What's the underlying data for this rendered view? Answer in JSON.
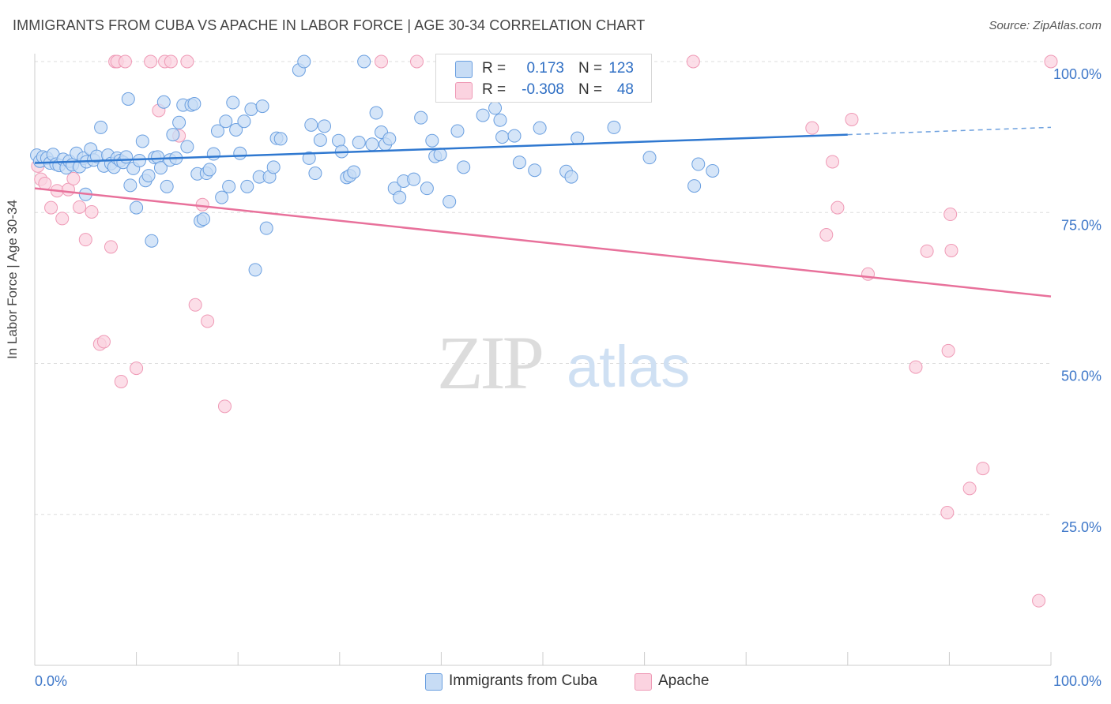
{
  "header": {
    "title": "IMMIGRANTS FROM CUBA VS APACHE IN LABOR FORCE | AGE 30-34 CORRELATION CHART",
    "source": "Source: ZipAtlas.com"
  },
  "watermark": {
    "zip": "ZIP",
    "atlas": "atlas"
  },
  "legend": {
    "rows": [
      {
        "r_label": "R =",
        "r_value": "0.173",
        "n_label": "N =",
        "n_value": "123",
        "color": "#8db8ec"
      },
      {
        "r_label": "R =",
        "r_value": "-0.308",
        "n_label": "N =",
        "n_value": "48",
        "color": "#f4a9c0"
      }
    ]
  },
  "bottom_legend": [
    {
      "label": "Immigrants from Cuba",
      "color": "#8db8ec"
    },
    {
      "label": "Apache",
      "color": "#f4a9c0"
    }
  ],
  "colors": {
    "blue_fill": "#c7dcf5",
    "blue_stroke": "#6a9fe0",
    "blue_line": "#2f78d0",
    "pink_fill": "#fbd3e0",
    "pink_stroke": "#ef9ab6",
    "pink_line": "#e8719b",
    "axis_label": "#3f78c9"
  },
  "chart_data": {
    "type": "scatter",
    "title": "IMMIGRANTS FROM CUBA VS APACHE IN LABOR FORCE | AGE 30-34 CORRELATION CHART",
    "xlabel": "",
    "ylabel": "In Labor Force | Age 30-34",
    "xlim": [
      0,
      100
    ],
    "ylim": [
      0,
      104
    ],
    "x_tick_labels": [
      "0.0%",
      "100.0%"
    ],
    "y_ticks": [
      25,
      50,
      75,
      100
    ],
    "y_tick_labels": [
      "25.0%",
      "50.0%",
      "75.0%",
      "100.0%"
    ],
    "grid": "horizontal dashed",
    "series": [
      {
        "name": "Immigrants from Cuba",
        "points": [
          [
            0.2,
            84.5
          ],
          [
            0.5,
            83.5
          ],
          [
            0.8,
            84.2
          ],
          [
            1.2,
            84.0
          ],
          [
            1.5,
            83.2
          ],
          [
            1.8,
            84.6
          ],
          [
            2.1,
            83.0
          ],
          [
            2.4,
            82.8
          ],
          [
            2.8,
            83.8
          ],
          [
            3.1,
            82.4
          ],
          [
            3.4,
            83.5
          ],
          [
            3.7,
            82.9
          ],
          [
            4.1,
            84.8
          ],
          [
            4.4,
            82.6
          ],
          [
            4.8,
            84.0
          ],
          [
            5.1,
            83.4
          ],
          [
            5.5,
            85.5
          ],
          [
            5.8,
            83.7
          ],
          [
            6.1,
            84.3
          ],
          [
            6.5,
            89.1
          ],
          [
            6.8,
            82.7
          ],
          [
            7.2,
            84.5
          ],
          [
            7.5,
            83.1
          ],
          [
            7.8,
            82.5
          ],
          [
            8.1,
            84.0
          ],
          [
            8.4,
            83.6
          ],
          [
            8.7,
            83.3
          ],
          [
            9.0,
            84.2
          ],
          [
            9.2,
            93.8
          ],
          [
            9.4,
            79.5
          ],
          [
            9.7,
            82.3
          ],
          [
            10.0,
            75.8
          ],
          [
            10.3,
            83.6
          ],
          [
            10.6,
            86.8
          ],
          [
            10.9,
            80.3
          ],
          [
            11.2,
            81.1
          ],
          [
            11.5,
            70.3
          ],
          [
            11.8,
            84.1
          ],
          [
            12.1,
            84.2
          ],
          [
            12.4,
            82.4
          ],
          [
            12.7,
            93.3
          ],
          [
            13.0,
            79.3
          ],
          [
            13.3,
            83.7
          ],
          [
            13.6,
            87.9
          ],
          [
            13.9,
            84.0
          ],
          [
            14.2,
            89.9
          ],
          [
            14.6,
            92.8
          ],
          [
            15.0,
            85.9
          ],
          [
            15.4,
            92.8
          ],
          [
            15.7,
            93.0
          ],
          [
            16.0,
            81.4
          ],
          [
            16.3,
            73.6
          ],
          [
            16.6,
            73.9
          ],
          [
            16.9,
            81.5
          ],
          [
            17.2,
            82.1
          ],
          [
            17.6,
            84.7
          ],
          [
            18.0,
            88.5
          ],
          [
            18.4,
            77.5
          ],
          [
            18.8,
            90.1
          ],
          [
            19.1,
            79.3
          ],
          [
            19.5,
            93.2
          ],
          [
            19.8,
            88.7
          ],
          [
            20.2,
            84.8
          ],
          [
            20.6,
            90.1
          ],
          [
            20.9,
            79.3
          ],
          [
            21.3,
            92.1
          ],
          [
            21.7,
            65.5
          ],
          [
            22.1,
            80.9
          ],
          [
            22.4,
            92.6
          ],
          [
            22.8,
            72.4
          ],
          [
            23.1,
            80.9
          ],
          [
            23.5,
            82.5
          ],
          [
            23.8,
            87.3
          ],
          [
            24.2,
            87.2
          ],
          [
            26.0,
            98.6
          ],
          [
            26.5,
            100.0
          ],
          [
            27.2,
            89.5
          ],
          [
            27.6,
            81.5
          ],
          [
            28.1,
            87.0
          ],
          [
            28.5,
            89.3
          ],
          [
            29.9,
            86.9
          ],
          [
            30.2,
            85.1
          ],
          [
            30.7,
            80.8
          ],
          [
            31.0,
            81.1
          ],
          [
            31.4,
            81.7
          ],
          [
            31.9,
            86.6
          ],
          [
            32.4,
            100.0
          ],
          [
            33.2,
            86.3
          ],
          [
            33.6,
            91.5
          ],
          [
            34.1,
            88.3
          ],
          [
            34.5,
            86.3
          ],
          [
            34.9,
            87.2
          ],
          [
            35.4,
            79.0
          ],
          [
            35.9,
            77.5
          ],
          [
            36.3,
            80.2
          ],
          [
            37.3,
            80.5
          ],
          [
            38.0,
            90.7
          ],
          [
            38.6,
            79.0
          ],
          [
            39.1,
            86.9
          ],
          [
            39.4,
            84.3
          ],
          [
            39.9,
            84.6
          ],
          [
            40.8,
            76.8
          ],
          [
            41.6,
            88.5
          ],
          [
            42.2,
            82.5
          ],
          [
            44.1,
            91.1
          ],
          [
            45.3,
            92.3
          ],
          [
            45.8,
            90.3
          ],
          [
            46.0,
            87.5
          ],
          [
            47.2,
            87.7
          ],
          [
            47.7,
            83.3
          ],
          [
            49.2,
            82.0
          ],
          [
            49.7,
            89.0
          ],
          [
            52.3,
            81.8
          ],
          [
            52.8,
            80.9
          ],
          [
            53.4,
            87.3
          ],
          [
            55.2,
            94.6
          ],
          [
            57.0,
            89.1
          ],
          [
            60.5,
            84.1
          ],
          [
            64.9,
            79.4
          ],
          [
            65.3,
            83.0
          ],
          [
            66.7,
            81.9
          ],
          [
            27.0,
            84.0
          ],
          [
            5.0,
            78.0
          ]
        ]
      },
      {
        "name": "Apache",
        "points": [
          [
            0.3,
            82.7
          ],
          [
            0.6,
            80.5
          ],
          [
            1.0,
            79.8
          ],
          [
            1.6,
            75.8
          ],
          [
            2.2,
            78.6
          ],
          [
            2.7,
            74.0
          ],
          [
            3.3,
            78.8
          ],
          [
            3.8,
            80.6
          ],
          [
            4.4,
            75.9
          ],
          [
            5.0,
            70.5
          ],
          [
            5.6,
            75.1
          ],
          [
            6.4,
            53.2
          ],
          [
            6.8,
            53.6
          ],
          [
            7.5,
            69.3
          ],
          [
            7.9,
            100.0
          ],
          [
            8.1,
            100.0
          ],
          [
            8.5,
            47.0
          ],
          [
            8.9,
            100.0
          ],
          [
            10.0,
            49.2
          ],
          [
            11.4,
            100.0
          ],
          [
            12.2,
            91.9
          ],
          [
            12.8,
            100.0
          ],
          [
            13.4,
            100.0
          ],
          [
            14.2,
            87.7
          ],
          [
            15.0,
            100.0
          ],
          [
            15.8,
            59.7
          ],
          [
            16.5,
            76.3
          ],
          [
            17.0,
            57.0
          ],
          [
            18.7,
            42.9
          ],
          [
            34.1,
            100.0
          ],
          [
            37.6,
            100.0
          ],
          [
            64.8,
            100.0
          ],
          [
            76.5,
            89.0
          ],
          [
            80.4,
            90.4
          ],
          [
            78.5,
            83.4
          ],
          [
            79.0,
            75.8
          ],
          [
            77.9,
            71.3
          ],
          [
            82.0,
            64.8
          ],
          [
            87.8,
            68.6
          ],
          [
            89.9,
            52.1
          ],
          [
            90.1,
            74.7
          ],
          [
            90.2,
            68.7
          ],
          [
            86.7,
            49.4
          ],
          [
            89.8,
            25.3
          ],
          [
            92.0,
            29.3
          ],
          [
            93.3,
            32.6
          ],
          [
            98.8,
            10.7
          ],
          [
            100.0,
            100.0
          ]
        ]
      }
    ],
    "trendlines": [
      {
        "series": "Immigrants from Cuba",
        "from": [
          0,
          83.2
        ],
        "solid_to": [
          80,
          87.9
        ],
        "dashed_to": [
          100,
          89.1
        ]
      },
      {
        "series": "Apache",
        "from": [
          0,
          79.0
        ],
        "to": [
          100,
          61.1
        ]
      }
    ]
  }
}
